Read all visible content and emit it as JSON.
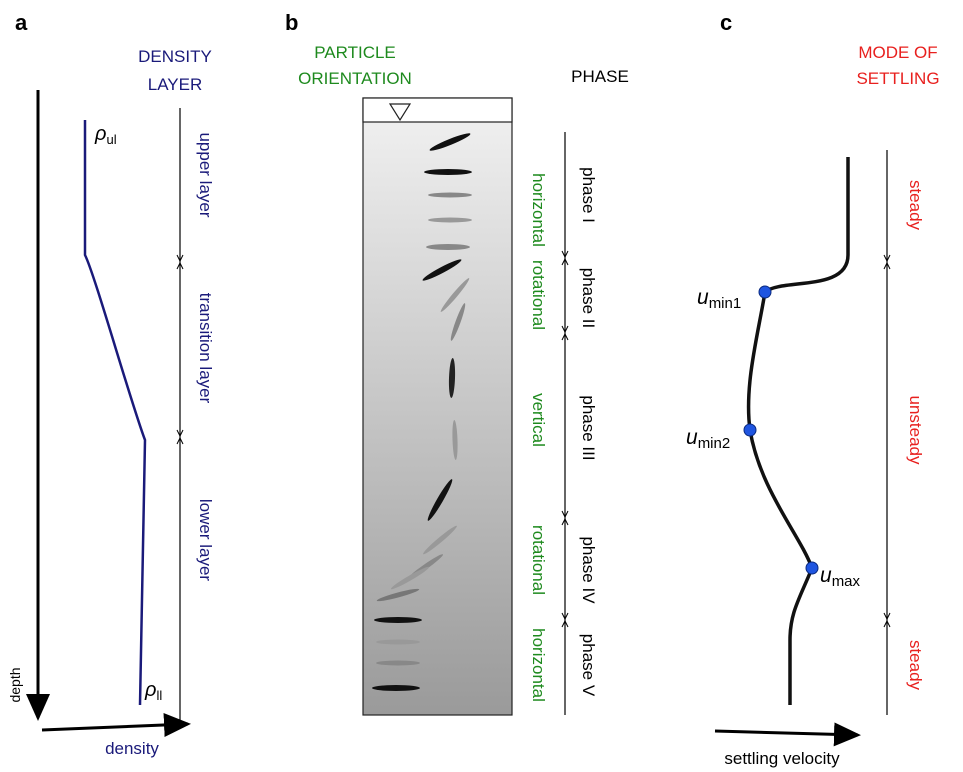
{
  "panel_a": {
    "label": "a",
    "header_lines": [
      "DENSITY",
      "LAYER"
    ],
    "rho_upper": {
      "symbol": "ρ",
      "subscript": "ul"
    },
    "rho_lower": {
      "symbol": "ρ",
      "subscript": "ll"
    },
    "layers": [
      "upper layer",
      "transition layer",
      "lower layer"
    ],
    "y_axis_label": "depth",
    "x_axis_label": "density"
  },
  "panel_b": {
    "label": "b",
    "orientation_header_lines": [
      "PARTICLE",
      "ORIENTATION"
    ],
    "phase_header": "PHASE",
    "orientations": [
      "horizontal",
      "rotational",
      "vertical",
      "rotational",
      "horizontal"
    ],
    "phases": [
      "phase I",
      "phase II",
      "phase III",
      "phase IV",
      "phase V"
    ]
  },
  "panel_c": {
    "label": "c",
    "header_lines": [
      "MODE OF",
      "SETTLING"
    ],
    "points": [
      {
        "symbol": "u",
        "subscript": "min1"
      },
      {
        "symbol": "u",
        "subscript": "min2"
      },
      {
        "symbol": "u",
        "subscript": "max"
      }
    ],
    "modes": [
      "steady",
      "unsteady",
      "steady"
    ],
    "x_axis_label": "settling velocity"
  }
}
